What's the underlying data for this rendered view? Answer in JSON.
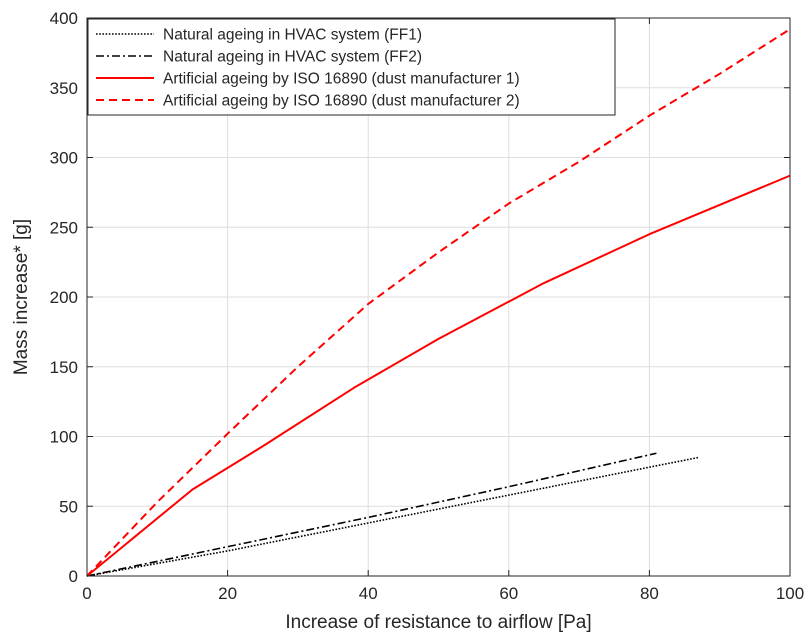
{
  "chart_data": {
    "type": "line",
    "title": "",
    "xlabel": "Increase of resistance to airflow [Pa]",
    "ylabel": "Mass increase* [g]",
    "xlim": [
      0,
      100
    ],
    "ylim": [
      0,
      400
    ],
    "xticks": [
      0,
      20,
      40,
      60,
      80,
      100
    ],
    "yticks": [
      0,
      50,
      100,
      150,
      200,
      250,
      300,
      350,
      400
    ],
    "grid": true,
    "legend_position": "top-left",
    "series": [
      {
        "name": "Natural ageing in HVAC system (FF1)",
        "color": "#000000",
        "style": "dotted",
        "points": [
          [
            0,
            0
          ],
          [
            20,
            18
          ],
          [
            40,
            38
          ],
          [
            60,
            58
          ],
          [
            80,
            78
          ],
          [
            87,
            85
          ]
        ]
      },
      {
        "name": "Natural ageing in HVAC system (FF2)",
        "color": "#000000",
        "style": "dashdot",
        "points": [
          [
            0,
            0
          ],
          [
            20,
            21
          ],
          [
            40,
            42
          ],
          [
            60,
            64
          ],
          [
            81,
            88
          ]
        ]
      },
      {
        "name": "Artificial ageing by ISO 16890 (dust manufacturer 1)",
        "color": "#ff0000",
        "style": "solid",
        "points": [
          [
            0,
            0
          ],
          [
            15,
            62
          ],
          [
            25,
            93
          ],
          [
            38,
            135
          ],
          [
            50,
            170
          ],
          [
            65,
            210
          ],
          [
            80,
            245
          ],
          [
            100,
            287
          ]
        ]
      },
      {
        "name": "Artificial ageing by ISO 16890 (dust manufacturer 2)",
        "color": "#ff0000",
        "style": "dashed",
        "points": [
          [
            0,
            0
          ],
          [
            10,
            53
          ],
          [
            20,
            102
          ],
          [
            30,
            150
          ],
          [
            40,
            195
          ],
          [
            50,
            232
          ],
          [
            60,
            267
          ],
          [
            70,
            297
          ],
          [
            80,
            330
          ],
          [
            90,
            360
          ],
          [
            100,
            392
          ]
        ]
      }
    ]
  }
}
